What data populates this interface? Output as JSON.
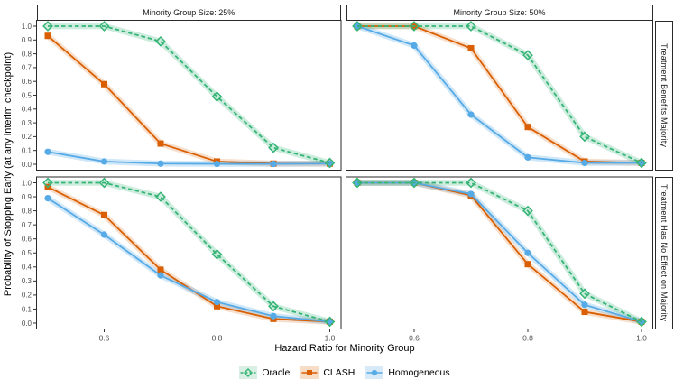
{
  "figure": {
    "x_axis_title": "Hazard Ratio for Minority Group",
    "y_axis_title": "Probability of Stopping Early (at any interim checkpoint)",
    "col_facets": [
      "Minority Group Size: 25%",
      "Minority Group Size: 50%"
    ],
    "row_facets": [
      "Treatment Benefits Majority",
      "Treatment Has No Effect on Majority"
    ]
  },
  "chart_data": {
    "type": "line",
    "title": "",
    "xlabel": "Hazard Ratio for Minority Group",
    "ylabel": "Probability of Stopping Early (at any interim checkpoint)",
    "grid": false,
    "legend_position": "bottom",
    "xlim": [
      0.5,
      1.0
    ],
    "ylim": [
      0.0,
      1.0
    ],
    "x": [
      0.5,
      0.6,
      0.7,
      0.8,
      0.9,
      1.0
    ],
    "x_tick_labels": [
      "0.6",
      "0.8",
      "1.0"
    ],
    "x_tick_values": [
      0.6,
      0.8,
      1.0
    ],
    "y_tick_labels": [
      "1.0",
      "0.9",
      "0.8",
      "0.7",
      "0.6",
      "0.5",
      "0.4",
      "0.3",
      "0.2",
      "0.1",
      "0.0"
    ],
    "col_facets": [
      "Minority Group Size: 25%",
      "Minority Group Size: 50%"
    ],
    "row_facets": [
      "Treatment Benefits Majority",
      "Treatment Has No Effect on Majority"
    ],
    "series": [
      {
        "name": "Oracle",
        "color": "#35b476",
        "ribbon": "rgba(53,180,118,0.25)",
        "key_bg": "#d9efe3",
        "marker": "diamond-open",
        "dashed": true
      },
      {
        "name": "CLASH",
        "color": "#d95f02",
        "ribbon": "rgba(217,95,2,0.20)",
        "key_bg": "#f8ddc6",
        "marker": "square",
        "dashed": false
      },
      {
        "name": "Homogeneous",
        "color": "#56aae6",
        "ribbon": "rgba(86,170,230,0.28)",
        "key_bg": "#d8eaf8",
        "marker": "circle",
        "dashed": false
      }
    ],
    "draw_order": [
      "CLASH",
      "Homogeneous",
      "Oracle"
    ],
    "panels": [
      {
        "row": 0,
        "col": 0,
        "values": {
          "Oracle": [
            1.0,
            1.0,
            0.89,
            0.49,
            0.12,
            0.01
          ],
          "CLASH": [
            0.93,
            0.58,
            0.15,
            0.02,
            0.005,
            0.005
          ],
          "Homogeneous": [
            0.09,
            0.02,
            0.005,
            0.003,
            0.003,
            0.005
          ]
        }
      },
      {
        "row": 0,
        "col": 1,
        "values": {
          "Oracle": [
            1.0,
            1.0,
            1.0,
            0.79,
            0.2,
            0.01
          ],
          "CLASH": [
            1.0,
            1.0,
            0.84,
            0.27,
            0.02,
            0.01
          ],
          "Homogeneous": [
            1.0,
            0.86,
            0.36,
            0.05,
            0.01,
            0.01
          ]
        }
      },
      {
        "row": 1,
        "col": 0,
        "values": {
          "Oracle": [
            1.0,
            1.0,
            0.9,
            0.49,
            0.12,
            0.01
          ],
          "CLASH": [
            0.97,
            0.77,
            0.38,
            0.12,
            0.03,
            0.01
          ],
          "Homogeneous": [
            0.89,
            0.63,
            0.34,
            0.15,
            0.05,
            0.01
          ]
        }
      },
      {
        "row": 1,
        "col": 1,
        "values": {
          "Oracle": [
            1.0,
            1.0,
            1.0,
            0.8,
            0.21,
            0.01
          ],
          "CLASH": [
            1.0,
            1.0,
            0.91,
            0.42,
            0.08,
            0.01
          ],
          "Homogeneous": [
            1.0,
            1.0,
            0.92,
            0.5,
            0.13,
            0.01
          ]
        }
      }
    ]
  }
}
